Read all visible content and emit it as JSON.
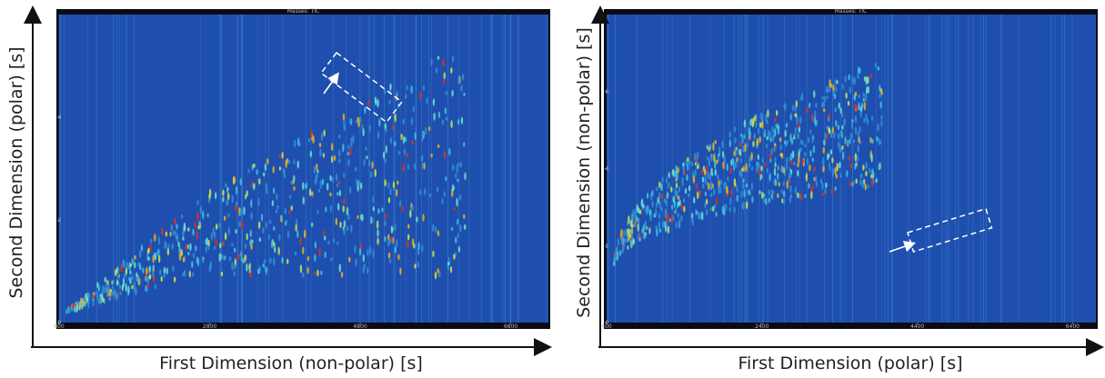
{
  "chart_data": [
    {
      "type": "heatmap",
      "title": "Masses: TIC",
      "xlabel": "First Dimension (non-polar) [s]",
      "ylabel": "Second Dimension (polar) [s]",
      "xlim": [
        800,
        7300
      ],
      "xticks": [
        800,
        2800,
        4800,
        6800
      ],
      "ylim": [
        0,
        6
      ],
      "yticks": [
        0,
        2,
        4
      ]
    },
    {
      "type": "heatmap",
      "title": "Masses: TIC",
      "xlabel": "First Dimension (polar) [s]",
      "ylabel": "Second Dimension (non-polar) [s]",
      "xlim": [
        400,
        6700
      ],
      "xticks": [
        400,
        2400,
        4400,
        6400
      ],
      "ylim": [
        0,
        8
      ],
      "yticks": [
        0,
        2,
        4,
        6
      ]
    }
  ]
}
